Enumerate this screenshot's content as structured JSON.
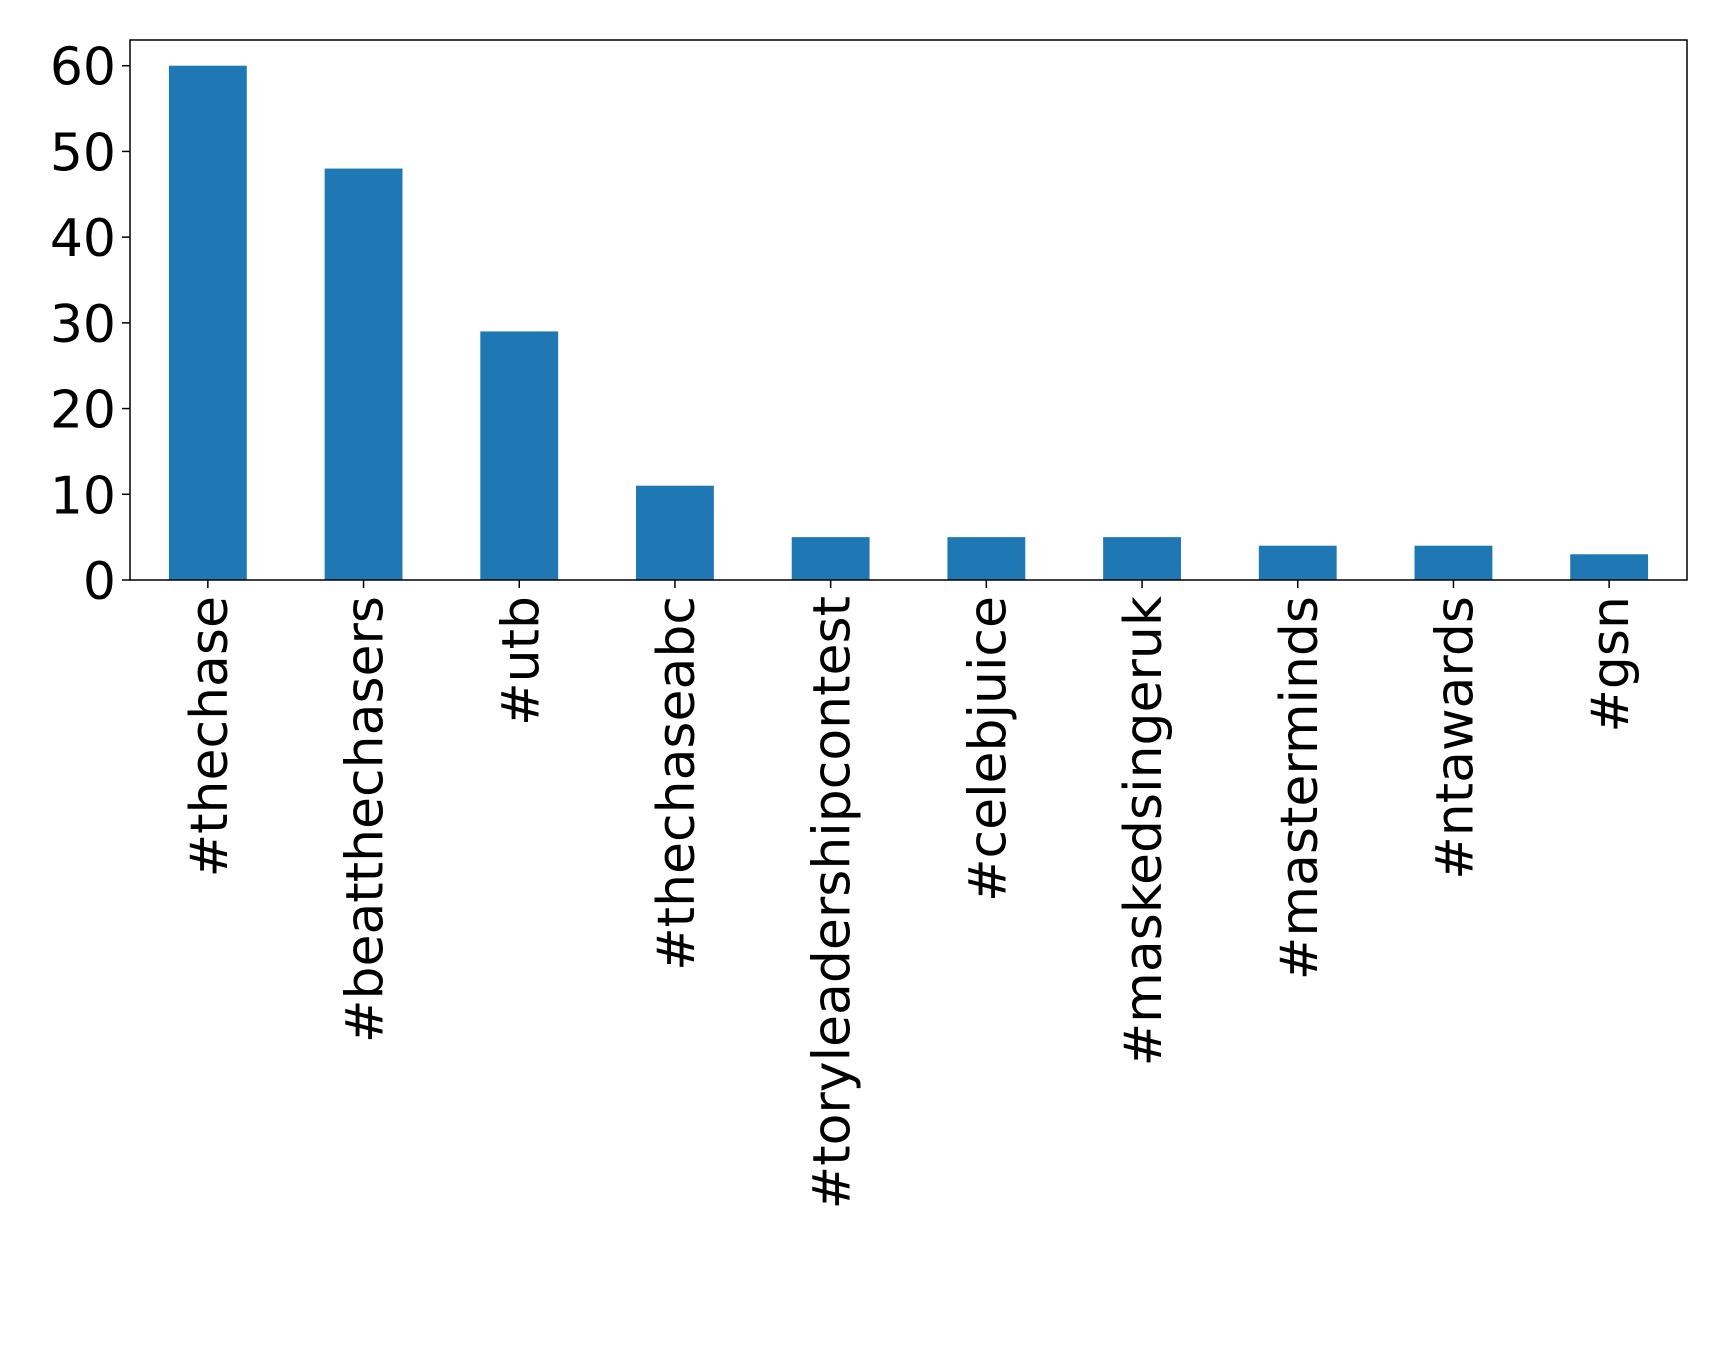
{
  "chart_data": {
    "type": "bar",
    "categories": [
      "#thechase",
      "#beatthechasers",
      "#utb",
      "#thechaseabc",
      "#toryleadershipcontest",
      "#celebjuice",
      "#maskedsingeruk",
      "#masterminds",
      "#ntawards",
      "#gsn"
    ],
    "values": [
      60,
      48,
      29,
      11,
      5,
      5,
      5,
      4,
      4,
      3
    ],
    "color": "#1f77b4",
    "ylim": [
      0,
      63
    ],
    "yticks": [
      0,
      10,
      20,
      30,
      40,
      50,
      60
    ],
    "grid": false
  }
}
